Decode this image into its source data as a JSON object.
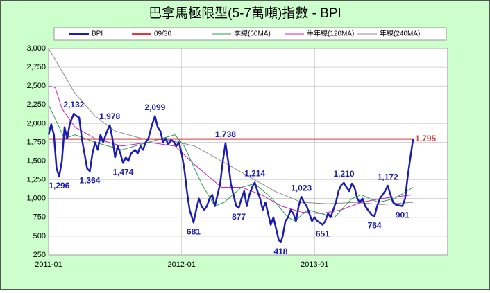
{
  "chart_data": {
    "type": "line",
    "title": "巴拿馬極限型(5-7萬噸)指數 - BPI",
    "xlim": [
      2011,
      2014
    ],
    "xticks": [
      {
        "value": 2011,
        "label": "2011-01"
      },
      {
        "value": 2012,
        "label": "2012-01"
      },
      {
        "value": 2013,
        "label": "2013-01"
      }
    ],
    "ylim": [
      250,
      3000
    ],
    "yticks": [
      {
        "value": 250,
        "label": "250"
      },
      {
        "value": 500,
        "label": "500"
      },
      {
        "value": 750,
        "label": "750"
      },
      {
        "value": 1000,
        "label": "1,000"
      },
      {
        "value": 1250,
        "label": "1,250"
      },
      {
        "value": 1500,
        "label": "1,500"
      },
      {
        "value": 1750,
        "label": "1,750"
      },
      {
        "value": 2000,
        "label": "2,000"
      },
      {
        "value": 2250,
        "label": "2,250"
      },
      {
        "value": 2500,
        "label": "2,500"
      },
      {
        "value": 2750,
        "label": "2,750"
      },
      {
        "value": 3000,
        "label": "3,000"
      }
    ],
    "grid": true,
    "series": [
      {
        "name": "BPI",
        "color": "#1c1cb0",
        "x": [
          2011.0,
          2011.02,
          2011.04,
          2011.06,
          2011.08,
          2011.1,
          2011.12,
          2011.14,
          2011.16,
          2011.19,
          2011.21,
          2011.23,
          2011.25,
          2011.27,
          2011.29,
          2011.31,
          2011.33,
          2011.35,
          2011.37,
          2011.39,
          2011.41,
          2011.44,
          2011.46,
          2011.48,
          2011.5,
          2011.52,
          2011.54,
          2011.56,
          2011.58,
          2011.6,
          2011.62,
          2011.65,
          2011.67,
          2011.69,
          2011.71,
          2011.73,
          2011.75,
          2011.78,
          2011.8,
          2011.82,
          2011.84,
          2011.86,
          2011.88,
          2011.9,
          2011.92,
          2011.94,
          2011.96,
          2011.98,
          2012.0,
          2012.02,
          2012.04,
          2012.06,
          2012.09,
          2012.11,
          2012.13,
          2012.15,
          2012.17,
          2012.19,
          2012.21,
          2012.23,
          2012.25,
          2012.27,
          2012.29,
          2012.31,
          2012.33,
          2012.35,
          2012.37,
          2012.39,
          2012.41,
          2012.43,
          2012.45,
          2012.47,
          2012.49,
          2012.51,
          2012.53,
          2012.55,
          2012.57,
          2012.59,
          2012.61,
          2012.63,
          2012.65,
          2012.67,
          2012.69,
          2012.71,
          2012.73,
          2012.745,
          2012.76,
          2012.78,
          2012.8,
          2012.82,
          2012.84,
          2012.86,
          2012.88,
          2012.9,
          2012.92,
          2012.94,
          2012.96,
          2012.98,
          2013.0,
          2013.02,
          2013.04,
          2013.06,
          2013.08,
          2013.1,
          2013.12,
          2013.14,
          2013.16,
          2013.18,
          2013.2,
          2013.22,
          2013.24,
          2013.26,
          2013.28,
          2013.3,
          2013.32,
          2013.34,
          2013.36,
          2013.38,
          2013.4,
          2013.43,
          2013.45,
          2013.47,
          2013.49,
          2013.51,
          2013.53,
          2013.55,
          2013.57,
          2013.59,
          2013.61,
          2013.63,
          2013.66,
          2013.68,
          2013.7,
          2013.72,
          2013.74
        ],
        "values": [
          1850,
          1990,
          1850,
          1400,
          1296,
          1500,
          1950,
          1800,
          2000,
          2132,
          2100,
          2080,
          1800,
          1600,
          1400,
          1364,
          1600,
          1750,
          1650,
          1850,
          1750,
          1900,
          1978,
          1800,
          1550,
          1700,
          1600,
          1474,
          1550,
          1500,
          1600,
          1650,
          1600,
          1700,
          1650,
          1750,
          1800,
          2000,
          2099,
          1950,
          1900,
          1750,
          1800,
          1720,
          1780,
          1760,
          1700,
          1750,
          1600,
          1400,
          1100,
          850,
          681,
          850,
          1000,
          900,
          850,
          900,
          1000,
          1050,
          900,
          1050,
          1200,
          1500,
          1738,
          1500,
          1200,
          1050,
          900,
          877,
          1000,
          1100,
          900,
          1050,
          1150,
          1214,
          1100,
          1000,
          850,
          950,
          800,
          650,
          750,
          600,
          450,
          418,
          500,
          700,
          750,
          850,
          800,
          700,
          900,
          1023,
          950,
          900,
          800,
          700,
          750,
          700,
          680,
          651,
          700,
          800,
          750,
          850,
          950,
          1100,
          1180,
          1210,
          1150,
          1100,
          1200,
          1150,
          1000,
          950,
          1000,
          900,
          850,
          780,
          764,
          900,
          1000,
          1050,
          1100,
          1172,
          1050,
          950,
          920,
          910,
          901,
          1000,
          1300,
          1550,
          1795
        ],
        "value_labels": [
          null,
          null,
          null,
          null,
          "1,296",
          null,
          null,
          null,
          null,
          "2,132",
          null,
          null,
          null,
          null,
          null,
          "1,364",
          null,
          null,
          null,
          null,
          null,
          null,
          "1,978",
          null,
          null,
          null,
          null,
          "1,474",
          null,
          null,
          null,
          null,
          null,
          null,
          null,
          null,
          null,
          null,
          "2,099",
          null,
          null,
          null,
          null,
          null,
          null,
          null,
          null,
          null,
          null,
          null,
          null,
          null,
          "681",
          null,
          null,
          null,
          null,
          null,
          null,
          null,
          null,
          null,
          null,
          null,
          "1,738",
          null,
          null,
          null,
          null,
          "877",
          null,
          null,
          null,
          null,
          null,
          "1,214",
          null,
          null,
          null,
          null,
          null,
          null,
          null,
          null,
          null,
          "418",
          null,
          null,
          null,
          null,
          null,
          null,
          null,
          "1,023",
          null,
          null,
          null,
          null,
          null,
          null,
          null,
          "651",
          null,
          null,
          null,
          null,
          null,
          null,
          null,
          "1,210",
          null,
          null,
          null,
          null,
          null,
          null,
          null,
          null,
          null,
          null,
          "764",
          null,
          null,
          null,
          null,
          "1,172",
          null,
          null,
          null,
          null,
          "901",
          null,
          null,
          null,
          null
        ]
      },
      {
        "name": "09/30",
        "color": "#e03a3a",
        "x": [
          2011.0,
          2013.74
        ],
        "values": [
          1795,
          1795
        ],
        "value_labels": [
          null,
          "1,795"
        ]
      },
      {
        "name": "季線(60MA)",
        "color": "#22a04a",
        "x": [
          2011.0,
          2011.12,
          2011.2,
          2011.35,
          2011.55,
          2011.75,
          2011.95,
          2012.02,
          2012.15,
          2012.25,
          2012.32,
          2012.45,
          2012.55,
          2012.68,
          2012.8,
          2012.85,
          2012.95,
          2013.05,
          2013.15,
          2013.28,
          2013.35,
          2013.48,
          2013.6,
          2013.74
        ],
        "values": [
          2250,
          1800,
          1850,
          1750,
          1650,
          1750,
          1850,
          1700,
          1200,
          900,
          950,
          1150,
          1200,
          1000,
          750,
          700,
          850,
          800,
          750,
          1000,
          1050,
          950,
          1000,
          1150
        ]
      },
      {
        "name": "半年線(120MA)",
        "color": "#d020c8",
        "x": [
          2011.0,
          2011.05,
          2011.1,
          2011.2,
          2011.35,
          2011.55,
          2011.75,
          2011.95,
          2012.1,
          2012.3,
          2012.45,
          2012.6,
          2012.75,
          2012.9,
          2013.05,
          2013.2,
          2013.35,
          2013.5,
          2013.74
        ],
        "values": [
          2500,
          2480,
          2200,
          1950,
          1800,
          1700,
          1750,
          1700,
          1450,
          1150,
          1150,
          1050,
          900,
          820,
          800,
          850,
          950,
          1000,
          1050
        ]
      },
      {
        "name": "年線(240MA)",
        "color": "#8a8a8a",
        "x": [
          2011.0,
          2011.1,
          2011.2,
          2011.35,
          2011.5,
          2011.7,
          2011.9,
          2012.1,
          2012.3,
          2012.5,
          2012.7,
          2012.9,
          2013.1,
          2013.3,
          2013.5,
          2013.74
        ],
        "values": [
          3000,
          2700,
          2400,
          2100,
          1900,
          1800,
          1780,
          1700,
          1500,
          1300,
          1100,
          950,
          930,
          950,
          920,
          950
        ]
      }
    ]
  }
}
